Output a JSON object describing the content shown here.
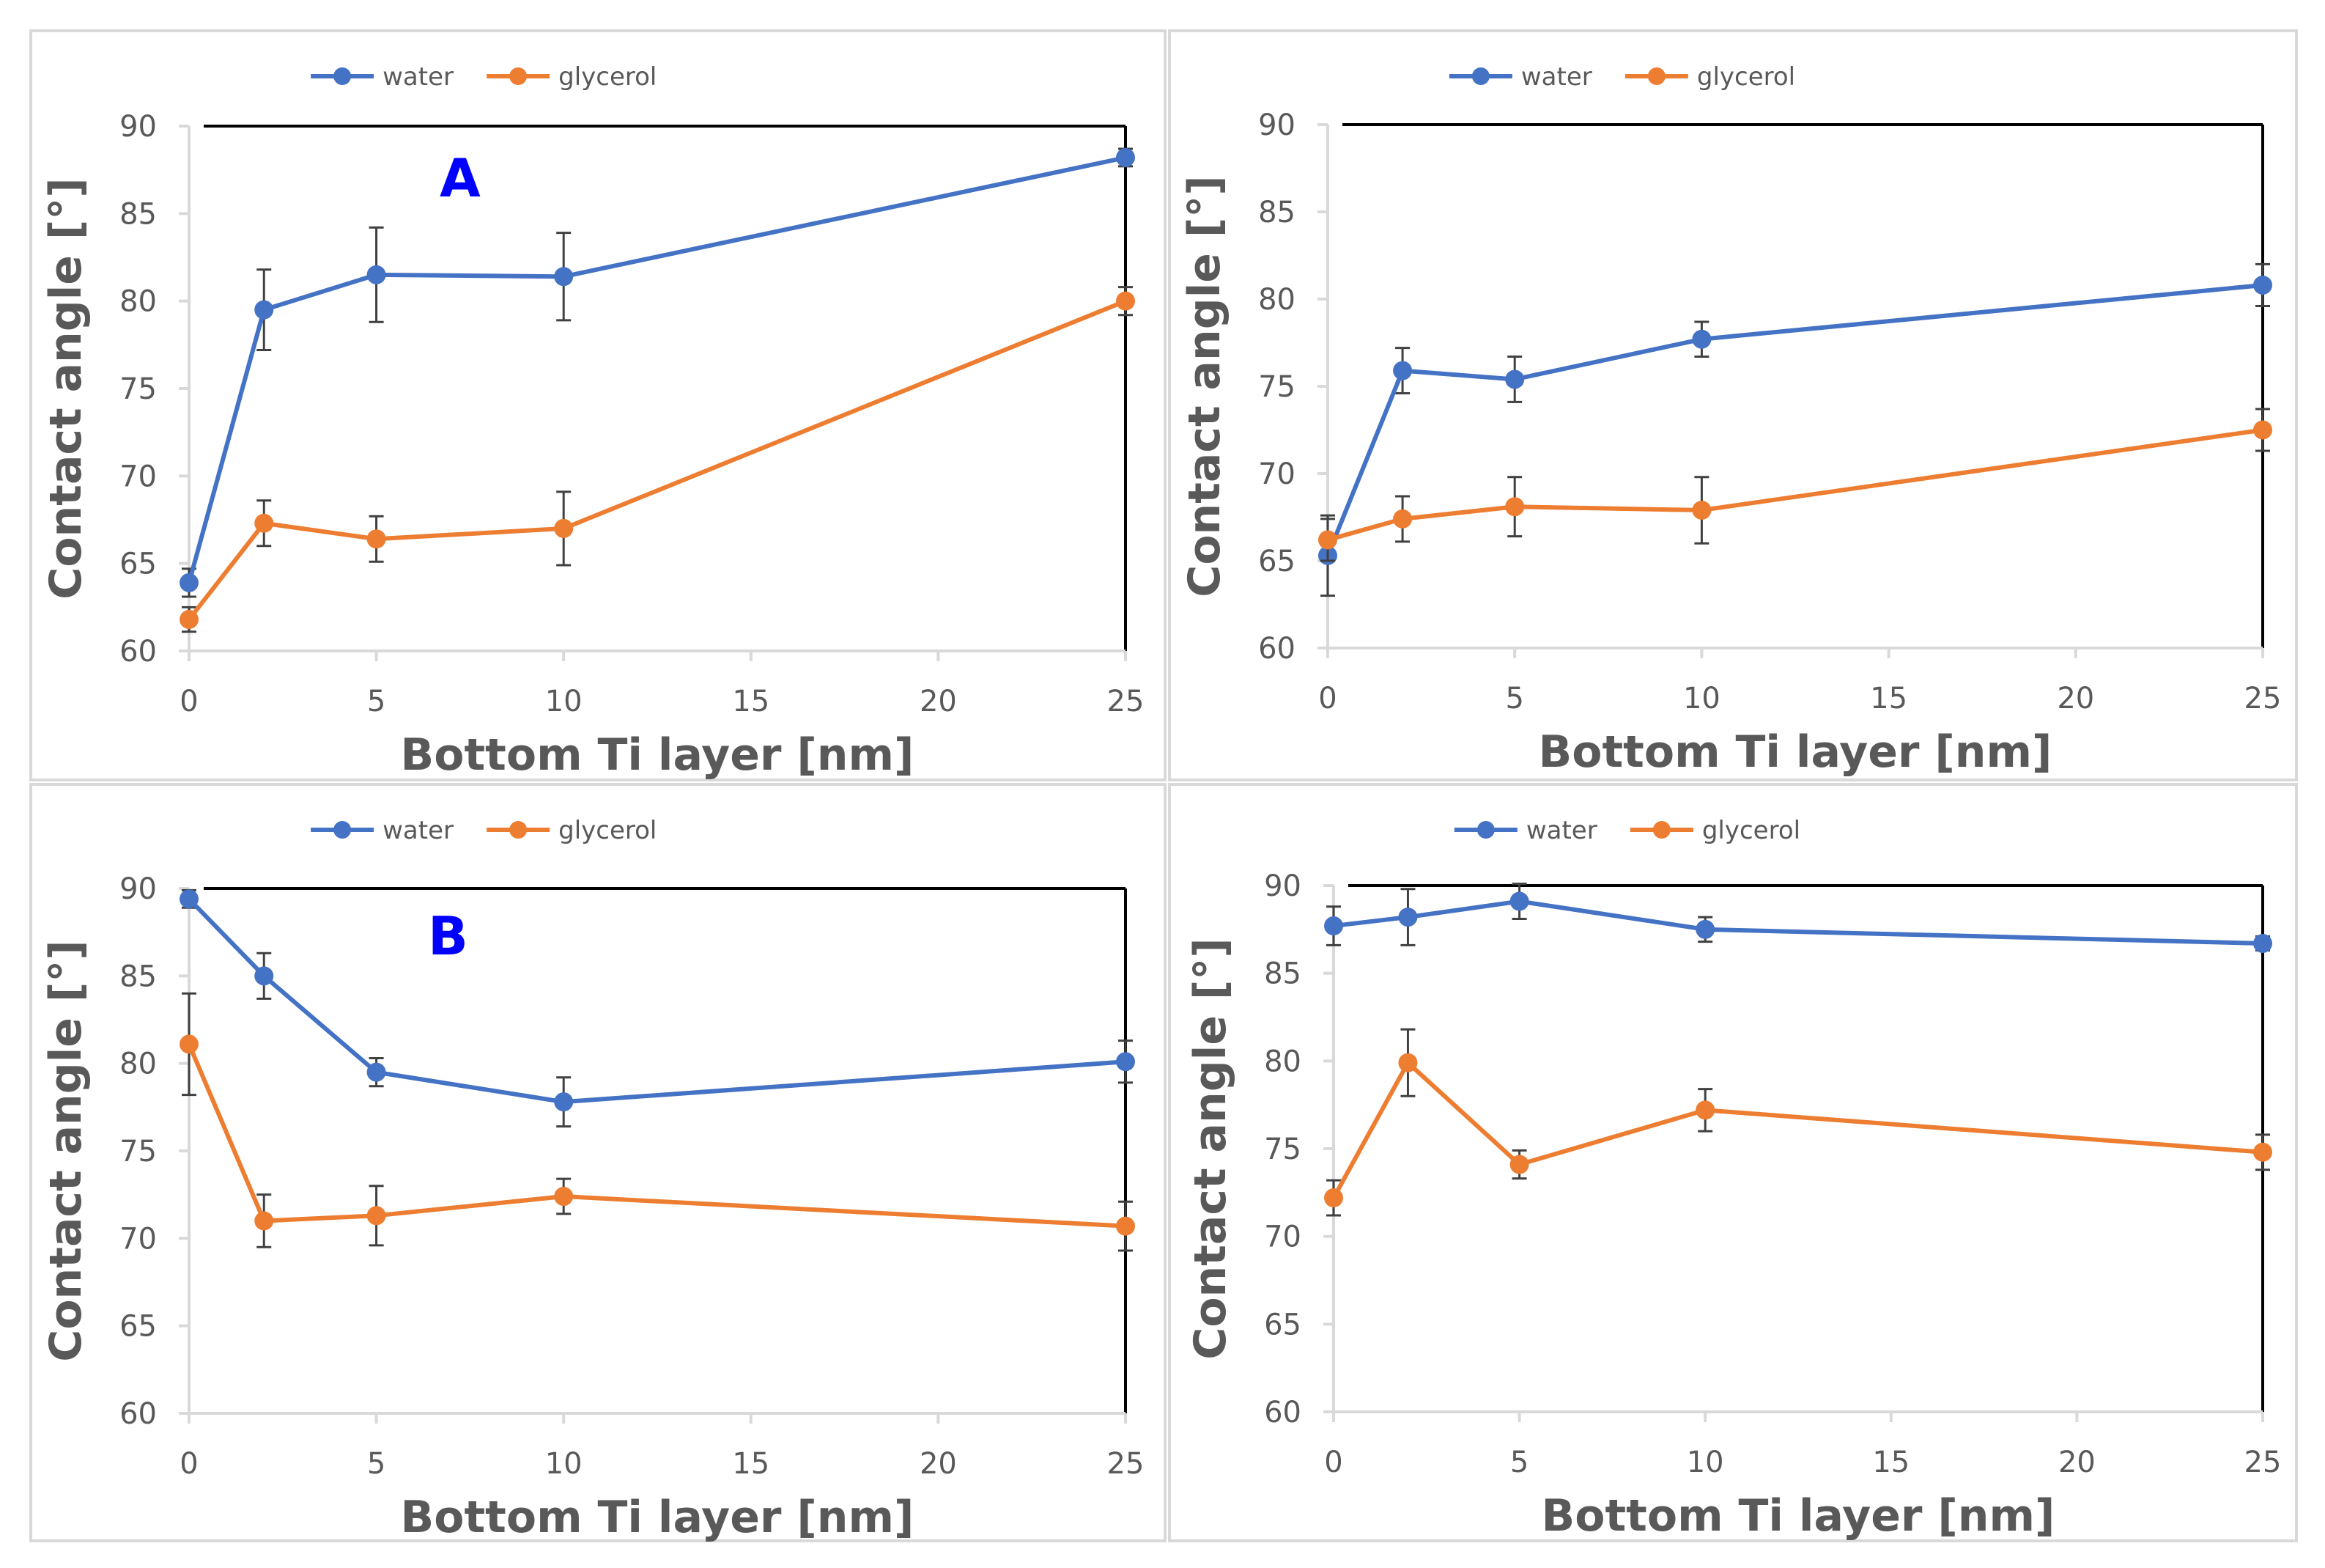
{
  "colors": {
    "water": "#4472C4",
    "glycerol": "#ED7D31",
    "axis": "#000000",
    "grid": "#D9D9D9",
    "panel_border": "#D9D9D9",
    "label_text": "#595959",
    "letter": "#0000FF"
  },
  "chart_data": [
    {
      "type": "line",
      "panel_letter": "A",
      "xlabel": "Bottom Ti layer [nm]",
      "ylabel": "Contact angle [°]",
      "xlim": [
        0,
        25
      ],
      "ylim": [
        60,
        90
      ],
      "xticks": [
        0,
        5,
        10,
        15,
        20,
        25
      ],
      "yticks": [
        60,
        65,
        70,
        75,
        80,
        85,
        90
      ],
      "legend_position": "top-center",
      "series": [
        {
          "name": "water",
          "color_key": "water",
          "x": [
            0,
            2,
            5,
            10,
            25
          ],
          "y": [
            63.9,
            79.5,
            81.5,
            81.4,
            88.2
          ],
          "err": [
            0.8,
            2.3,
            2.7,
            2.5,
            0.5
          ]
        },
        {
          "name": "glycerol",
          "color_key": "glycerol",
          "x": [
            0,
            2,
            5,
            10,
            25
          ],
          "y": [
            61.8,
            67.3,
            66.4,
            67.0,
            80.0
          ],
          "err": [
            0.7,
            1.3,
            1.3,
            2.1,
            0.8
          ]
        }
      ]
    },
    {
      "type": "line",
      "panel_letter": "",
      "xlabel": "Bottom Ti layer [nm]",
      "ylabel": "Contact angle [°]",
      "xlim": [
        0,
        25
      ],
      "ylim": [
        60,
        90
      ],
      "xticks": [
        0,
        5,
        10,
        15,
        20,
        25
      ],
      "yticks": [
        60,
        65,
        70,
        75,
        80,
        85,
        90
      ],
      "legend_position": "top-center",
      "series": [
        {
          "name": "water",
          "color_key": "water",
          "x": [
            0,
            2,
            5,
            10,
            25
          ],
          "y": [
            65.3,
            75.9,
            75.4,
            77.7,
            80.8
          ],
          "err": [
            2.3,
            1.3,
            1.3,
            1.0,
            1.2
          ]
        },
        {
          "name": "glycerol",
          "color_key": "glycerol",
          "x": [
            0,
            2,
            5,
            10,
            25
          ],
          "y": [
            66.2,
            67.4,
            68.1,
            67.9,
            72.5
          ],
          "err": [
            1.2,
            1.3,
            1.7,
            1.9,
            1.2
          ]
        }
      ]
    },
    {
      "type": "line",
      "panel_letter": "B",
      "xlabel": "Bottom Ti layer [nm]",
      "ylabel": "Contact angle [°]",
      "xlim": [
        0,
        25
      ],
      "ylim": [
        60,
        90
      ],
      "xticks": [
        0,
        5,
        10,
        15,
        20,
        25
      ],
      "yticks": [
        60,
        65,
        70,
        75,
        80,
        85,
        90
      ],
      "legend_position": "top-center",
      "series": [
        {
          "name": "water",
          "color_key": "water",
          "x": [
            0,
            2,
            5,
            10,
            25
          ],
          "y": [
            89.4,
            85.0,
            79.5,
            77.8,
            80.1
          ],
          "err": [
            0.5,
            1.3,
            0.8,
            1.4,
            1.2
          ]
        },
        {
          "name": "glycerol",
          "color_key": "glycerol",
          "x": [
            0,
            2,
            5,
            10,
            25
          ],
          "y": [
            81.1,
            71.0,
            71.3,
            72.4,
            70.7
          ],
          "err": [
            2.9,
            1.5,
            1.7,
            1.0,
            1.4
          ]
        }
      ]
    },
    {
      "type": "line",
      "panel_letter": "",
      "xlabel": "Bottom Ti layer [nm]",
      "ylabel": "Contact angle [°]",
      "xlim": [
        0,
        25
      ],
      "ylim": [
        60,
        90
      ],
      "xticks": [
        0,
        5,
        10,
        15,
        20,
        25
      ],
      "yticks": [
        60,
        65,
        70,
        75,
        80,
        85,
        90
      ],
      "legend_position": "top-center",
      "series": [
        {
          "name": "water",
          "color_key": "water",
          "x": [
            0,
            2,
            5,
            10,
            25
          ],
          "y": [
            87.7,
            88.2,
            89.1,
            87.5,
            86.7
          ],
          "err": [
            1.1,
            1.6,
            1.0,
            0.7,
            0.4
          ]
        },
        {
          "name": "glycerol",
          "color_key": "glycerol",
          "x": [
            0,
            2,
            5,
            10,
            25
          ],
          "y": [
            72.2,
            79.9,
            74.1,
            77.2,
            74.8
          ],
          "err": [
            1.0,
            1.9,
            0.8,
            1.2,
            1.0
          ]
        }
      ]
    }
  ]
}
